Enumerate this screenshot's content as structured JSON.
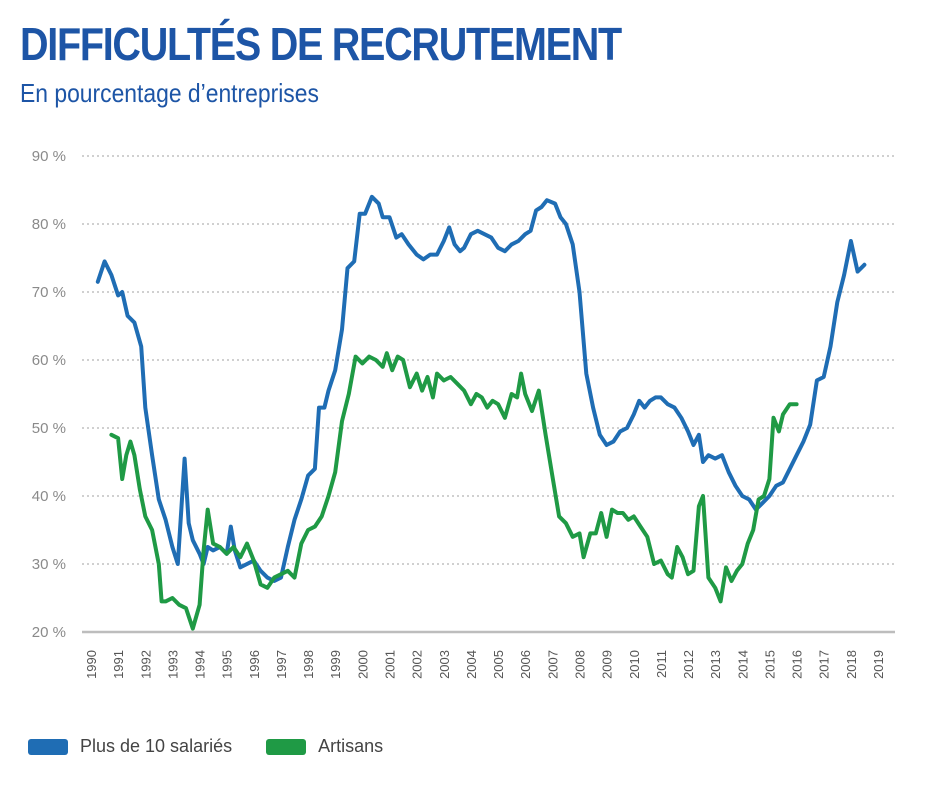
{
  "chart_data": {
    "type": "line",
    "title": "DIFFICULTÉS DE RECRUTEMENT",
    "subtitle": "En pourcentage d’entreprises",
    "xlabel": "",
    "ylabel": "",
    "xlim": [
      1990,
      2019
    ],
    "ylim": [
      20,
      90
    ],
    "x_ticks": [
      "1990",
      "1991",
      "1992",
      "1993",
      "1994",
      "1995",
      "1996",
      "1997",
      "1998",
      "1999",
      "2000",
      "2001",
      "2002",
      "2003",
      "2004",
      "2005",
      "2006",
      "2007",
      "2008",
      "2009",
      "2010",
      "2011",
      "2012",
      "2013",
      "2014",
      "2015",
      "2016",
      "2017",
      "2018",
      "2019"
    ],
    "y_ticks": [
      {
        "value": 20,
        "label": "20 %"
      },
      {
        "value": 30,
        "label": "30 %"
      },
      {
        "value": 40,
        "label": "40 %"
      },
      {
        "value": 50,
        "label": "50 %"
      },
      {
        "value": 60,
        "label": "60 %"
      },
      {
        "value": 70,
        "label": "70 %"
      },
      {
        "value": 80,
        "label": "80 %"
      },
      {
        "value": 90,
        "label": "90 %"
      }
    ],
    "grid": "horizontal-dotted",
    "legend_position": "bottom-left",
    "series": [
      {
        "name": "Plus de 10 salariés",
        "color": "#1f6db4",
        "points": [
          [
            1990.25,
            71.5
          ],
          [
            1990.5,
            74.5
          ],
          [
            1990.75,
            72.5
          ],
          [
            1991.0,
            69.5
          ],
          [
            1991.15,
            70.0
          ],
          [
            1991.35,
            66.5
          ],
          [
            1991.6,
            65.5
          ],
          [
            1991.85,
            62
          ],
          [
            1992.0,
            53
          ],
          [
            1992.25,
            46
          ],
          [
            1992.5,
            39.5
          ],
          [
            1992.75,
            36.5
          ],
          [
            1993.0,
            32.5
          ],
          [
            1993.2,
            30.0
          ],
          [
            1993.45,
            45.5
          ],
          [
            1993.6,
            36
          ],
          [
            1993.75,
            33.5
          ],
          [
            1994.0,
            31.5
          ],
          [
            1994.15,
            30.0
          ],
          [
            1994.3,
            32.5
          ],
          [
            1994.5,
            32.0
          ],
          [
            1994.75,
            32.5
          ],
          [
            1995.0,
            31.5
          ],
          [
            1995.15,
            35.5
          ],
          [
            1995.3,
            32.0
          ],
          [
            1995.5,
            29.5
          ],
          [
            1995.75,
            30.0
          ],
          [
            1996.0,
            30.5
          ],
          [
            1996.25,
            29.0
          ],
          [
            1996.5,
            28.0
          ],
          [
            1996.75,
            27.5
          ],
          [
            1997.0,
            28.0
          ],
          [
            1997.25,
            32.5
          ],
          [
            1997.5,
            36.5
          ],
          [
            1997.75,
            39.5
          ],
          [
            1998.0,
            43.0
          ],
          [
            1998.25,
            44.0
          ],
          [
            1998.4,
            53.0
          ],
          [
            1998.6,
            53.0
          ],
          [
            1998.75,
            55.5
          ],
          [
            1999.0,
            58.5
          ],
          [
            1999.25,
            64.5
          ],
          [
            1999.45,
            73.5
          ],
          [
            1999.7,
            74.5
          ],
          [
            1999.9,
            81.5
          ],
          [
            2000.1,
            81.5
          ],
          [
            2000.35,
            84.0
          ],
          [
            2000.6,
            83.0
          ],
          [
            2000.75,
            81.0
          ],
          [
            2001.0,
            81.0
          ],
          [
            2001.25,
            78.0
          ],
          [
            2001.45,
            78.5
          ],
          [
            2001.7,
            77.0
          ],
          [
            2002.0,
            75.5
          ],
          [
            2002.25,
            74.8
          ],
          [
            2002.5,
            75.5
          ],
          [
            2002.75,
            75.5
          ],
          [
            2003.0,
            77.5
          ],
          [
            2003.2,
            79.5
          ],
          [
            2003.4,
            77.0
          ],
          [
            2003.6,
            76.0
          ],
          [
            2003.75,
            76.5
          ],
          [
            2004.0,
            78.5
          ],
          [
            2004.25,
            79.0
          ],
          [
            2004.5,
            78.5
          ],
          [
            2004.75,
            78.0
          ],
          [
            2005.0,
            76.5
          ],
          [
            2005.25,
            76.0
          ],
          [
            2005.5,
            77.0
          ],
          [
            2005.75,
            77.5
          ],
          [
            2006.0,
            78.5
          ],
          [
            2006.2,
            79.0
          ],
          [
            2006.4,
            82.0
          ],
          [
            2006.6,
            82.5
          ],
          [
            2006.8,
            83.5
          ],
          [
            2007.1,
            83.0
          ],
          [
            2007.3,
            81.0
          ],
          [
            2007.5,
            80.0
          ],
          [
            2007.75,
            77.0
          ],
          [
            2008.0,
            70.0
          ],
          [
            2008.25,
            58.0
          ],
          [
            2008.5,
            53.0
          ],
          [
            2008.75,
            49.0
          ],
          [
            2009.0,
            47.5
          ],
          [
            2009.25,
            48.0
          ],
          [
            2009.5,
            49.5
          ],
          [
            2009.75,
            50.0
          ],
          [
            2010.0,
            52.0
          ],
          [
            2010.2,
            54.0
          ],
          [
            2010.4,
            53.0
          ],
          [
            2010.6,
            54.0
          ],
          [
            2010.8,
            54.5
          ],
          [
            2011.0,
            54.5
          ],
          [
            2011.25,
            53.5
          ],
          [
            2011.5,
            53.0
          ],
          [
            2011.75,
            51.5
          ],
          [
            2012.0,
            49.5
          ],
          [
            2012.2,
            47.5
          ],
          [
            2012.4,
            49.0
          ],
          [
            2012.55,
            45.0
          ],
          [
            2012.75,
            46.0
          ],
          [
            2013.0,
            45.5
          ],
          [
            2013.25,
            46.0
          ],
          [
            2013.5,
            43.5
          ],
          [
            2013.75,
            41.5
          ],
          [
            2014.0,
            40.0
          ],
          [
            2014.25,
            39.5
          ],
          [
            2014.5,
            38.0
          ],
          [
            2014.75,
            39.0
          ],
          [
            2015.0,
            40.0
          ],
          [
            2015.25,
            41.5
          ],
          [
            2015.5,
            42.0
          ],
          [
            2015.75,
            44.0
          ],
          [
            2016.0,
            46.0
          ],
          [
            2016.25,
            48.0
          ],
          [
            2016.5,
            50.5
          ],
          [
            2016.75,
            57.0
          ],
          [
            2017.0,
            57.5
          ],
          [
            2017.25,
            62.0
          ],
          [
            2017.5,
            68.5
          ],
          [
            2017.75,
            72.5
          ],
          [
            2018.0,
            77.5
          ],
          [
            2018.25,
            73.0
          ],
          [
            2018.5,
            74.0
          ]
        ]
      },
      {
        "name": "Artisans",
        "color": "#1f9a45",
        "points": [
          [
            1990.75,
            49.0
          ],
          [
            1991.0,
            48.5
          ],
          [
            1991.15,
            42.5
          ],
          [
            1991.3,
            46.0
          ],
          [
            1991.45,
            48.0
          ],
          [
            1991.6,
            46.0
          ],
          [
            1991.8,
            41.0
          ],
          [
            1992.0,
            37.0
          ],
          [
            1992.25,
            35.0
          ],
          [
            1992.5,
            30.0
          ],
          [
            1992.6,
            24.5
          ],
          [
            1992.75,
            24.5
          ],
          [
            1993.0,
            25.0
          ],
          [
            1993.25,
            24.0
          ],
          [
            1993.5,
            23.5
          ],
          [
            1993.75,
            20.5
          ],
          [
            1994.0,
            24.0
          ],
          [
            1994.15,
            32.0
          ],
          [
            1994.3,
            38.0
          ],
          [
            1994.5,
            33.0
          ],
          [
            1994.75,
            32.5
          ],
          [
            1995.0,
            31.5
          ],
          [
            1995.25,
            32.5
          ],
          [
            1995.5,
            31.0
          ],
          [
            1995.75,
            33.0
          ],
          [
            1996.0,
            30.5
          ],
          [
            1996.25,
            27.0
          ],
          [
            1996.5,
            26.5
          ],
          [
            1996.75,
            28.0
          ],
          [
            1997.0,
            28.5
          ],
          [
            1997.25,
            29.0
          ],
          [
            1997.5,
            28.0
          ],
          [
            1997.75,
            33.0
          ],
          [
            1998.0,
            35.0
          ],
          [
            1998.25,
            35.5
          ],
          [
            1998.5,
            37.0
          ],
          [
            1998.75,
            40.0
          ],
          [
            1999.0,
            43.5
          ],
          [
            1999.25,
            51.0
          ],
          [
            1999.5,
            55.0
          ],
          [
            1999.75,
            60.5
          ],
          [
            2000.0,
            59.5
          ],
          [
            2000.25,
            60.5
          ],
          [
            2000.5,
            60.0
          ],
          [
            2000.75,
            59.0
          ],
          [
            2000.9,
            61.0
          ],
          [
            2001.1,
            58.5
          ],
          [
            2001.3,
            60.5
          ],
          [
            2001.5,
            60.0
          ],
          [
            2001.75,
            56.0
          ],
          [
            2002.0,
            58.0
          ],
          [
            2002.2,
            55.5
          ],
          [
            2002.4,
            57.5
          ],
          [
            2002.6,
            54.5
          ],
          [
            2002.75,
            58.0
          ],
          [
            2003.0,
            57.0
          ],
          [
            2003.25,
            57.5
          ],
          [
            2003.5,
            56.5
          ],
          [
            2003.75,
            55.5
          ],
          [
            2004.0,
            53.5
          ],
          [
            2004.2,
            55.0
          ],
          [
            2004.4,
            54.5
          ],
          [
            2004.6,
            53.0
          ],
          [
            2004.8,
            54.0
          ],
          [
            2005.0,
            53.5
          ],
          [
            2005.25,
            51.5
          ],
          [
            2005.5,
            55.0
          ],
          [
            2005.7,
            54.5
          ],
          [
            2005.85,
            58.0
          ],
          [
            2006.0,
            55.0
          ],
          [
            2006.25,
            52.5
          ],
          [
            2006.5,
            55.5
          ],
          [
            2006.75,
            49.0
          ],
          [
            2007.0,
            43.0
          ],
          [
            2007.25,
            37.0
          ],
          [
            2007.5,
            36.0
          ],
          [
            2007.75,
            34.0
          ],
          [
            2008.0,
            34.5
          ],
          [
            2008.15,
            31.0
          ],
          [
            2008.4,
            34.5
          ],
          [
            2008.6,
            34.5
          ],
          [
            2008.8,
            37.5
          ],
          [
            2009.0,
            34.0
          ],
          [
            2009.2,
            38.0
          ],
          [
            2009.4,
            37.5
          ],
          [
            2009.6,
            37.5
          ],
          [
            2009.8,
            36.5
          ],
          [
            2010.0,
            37.0
          ],
          [
            2010.25,
            35.5
          ],
          [
            2010.5,
            34.0
          ],
          [
            2010.75,
            30.0
          ],
          [
            2011.0,
            30.5
          ],
          [
            2011.25,
            28.5
          ],
          [
            2011.4,
            28.0
          ],
          [
            2011.6,
            32.5
          ],
          [
            2011.8,
            31.0
          ],
          [
            2012.0,
            28.5
          ],
          [
            2012.2,
            29.0
          ],
          [
            2012.4,
            38.5
          ],
          [
            2012.55,
            40.0
          ],
          [
            2012.75,
            28.0
          ],
          [
            2013.0,
            26.5
          ],
          [
            2013.2,
            24.5
          ],
          [
            2013.4,
            29.5
          ],
          [
            2013.6,
            27.5
          ],
          [
            2013.8,
            29.0
          ],
          [
            2014.0,
            30.0
          ],
          [
            2014.2,
            33.0
          ],
          [
            2014.4,
            35.0
          ],
          [
            2014.6,
            39.5
          ],
          [
            2014.8,
            40.0
          ],
          [
            2015.0,
            42.5
          ],
          [
            2015.15,
            51.5
          ],
          [
            2015.35,
            49.5
          ],
          [
            2015.5,
            52.0
          ],
          [
            2015.75,
            53.5
          ],
          [
            2016.0,
            53.5
          ]
        ]
      }
    ]
  }
}
